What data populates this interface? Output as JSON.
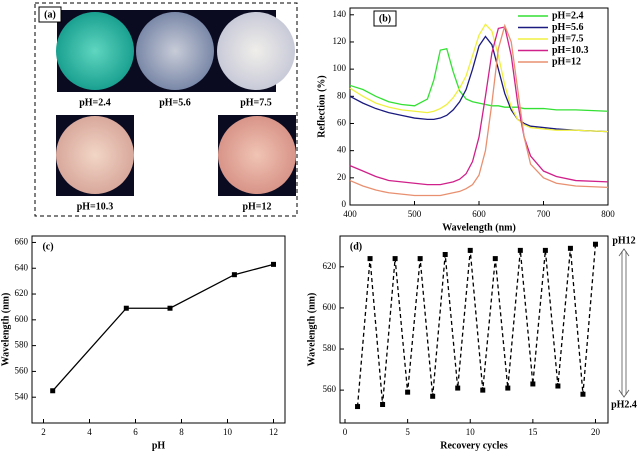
{
  "chart_data": [
    {
      "type": "photo",
      "panel_label": "(a)",
      "captions": [
        "pH=2.4",
        "pH=5.6",
        "pH=7.5",
        "pH=10.3",
        "pH=12"
      ]
    },
    {
      "type": "line",
      "panel_label": "(b)",
      "xlabel": "Wavelength (nm)",
      "ylabel": "Reflection (%)",
      "x": [
        400,
        420,
        440,
        460,
        480,
        500,
        520,
        530,
        540,
        550,
        560,
        570,
        580,
        590,
        600,
        610,
        620,
        630,
        640,
        650,
        660,
        670,
        680,
        700,
        720,
        750,
        800
      ],
      "xlim": [
        400,
        800
      ],
      "xticks": [
        400,
        500,
        600,
        700,
        800
      ],
      "ylim": [
        0,
        145
      ],
      "yticks": [
        0,
        20,
        40,
        60,
        80,
        100,
        120,
        140
      ],
      "legend": "upper right",
      "series": [
        {
          "name": "pH=2.4",
          "color": "#33e033",
          "values": [
            88,
            85,
            80,
            76,
            74,
            73,
            78,
            92,
            114,
            115,
            98,
            84,
            78,
            76,
            75,
            74,
            73,
            73,
            72,
            72,
            72,
            71,
            71,
            71,
            70,
            70,
            69
          ]
        },
        {
          "name": "pH=5.6",
          "color": "#1a1a80",
          "values": [
            80,
            75,
            71,
            68,
            66,
            64,
            63,
            63,
            64,
            66,
            70,
            76,
            85,
            100,
            117,
            124,
            118,
            100,
            82,
            70,
            63,
            60,
            58,
            57,
            56,
            55,
            54
          ]
        },
        {
          "name": "pH=7.5",
          "color": "#f0f040",
          "values": [
            86,
            80,
            75,
            72,
            70,
            69,
            68,
            69,
            71,
            74,
            79,
            86,
            95,
            110,
            125,
            133,
            128,
            110,
            88,
            72,
            63,
            59,
            57,
            56,
            55,
            55,
            54
          ]
        },
        {
          "name": "pH=10.3",
          "color": "#d0208a",
          "values": [
            29,
            25,
            21,
            18,
            17,
            16,
            15,
            15,
            15,
            16,
            17,
            19,
            23,
            32,
            50,
            80,
            112,
            130,
            131,
            110,
            75,
            50,
            36,
            25,
            21,
            18,
            17
          ]
        },
        {
          "name": "pH=12",
          "color": "#e89070",
          "values": [
            18,
            14,
            11,
            9,
            8,
            7,
            7,
            7,
            7,
            8,
            9,
            10,
            12,
            15,
            22,
            40,
            75,
            115,
            132,
            120,
            85,
            50,
            30,
            20,
            16,
            14,
            13
          ]
        }
      ]
    },
    {
      "type": "line",
      "panel_label": "(c)",
      "xlabel": "pH",
      "ylabel": "Wavelength (nm)",
      "x": [
        2.4,
        5.6,
        7.5,
        10.3,
        12
      ],
      "xlim": [
        1.5,
        12.5
      ],
      "xticks": [
        2,
        4,
        6,
        8,
        10,
        12
      ],
      "ylim": [
        520,
        665
      ],
      "yticks": [
        540,
        560,
        580,
        600,
        620,
        640,
        660
      ],
      "series": [
        {
          "color": "#000000",
          "marker": "square",
          "linestyle": "solid",
          "values": [
            545,
            609,
            609,
            635,
            643
          ]
        }
      ]
    },
    {
      "type": "line",
      "panel_label": "(d)",
      "xlabel": "Recovery cycles",
      "ylabel": "Wavelength (nm)",
      "x": [
        1,
        2,
        3,
        4,
        5,
        6,
        7,
        8,
        9,
        10,
        11,
        12,
        13,
        14,
        15,
        16,
        17,
        18,
        19,
        20
      ],
      "xlim": [
        -0.4,
        21
      ],
      "xticks": [
        0,
        5,
        10,
        15,
        20
      ],
      "ylim": [
        544,
        635
      ],
      "yticks": [
        560,
        580,
        600,
        620
      ],
      "annotations": [
        "pH12",
        "pH2.4"
      ],
      "series": [
        {
          "color": "#000000",
          "marker": "square",
          "linestyle": "dashed",
          "values": [
            552,
            624,
            553,
            624,
            559,
            624,
            557,
            626,
            561,
            628,
            560,
            624,
            561,
            628,
            563,
            628,
            562,
            629,
            558,
            631
          ]
        }
      ]
    }
  ]
}
